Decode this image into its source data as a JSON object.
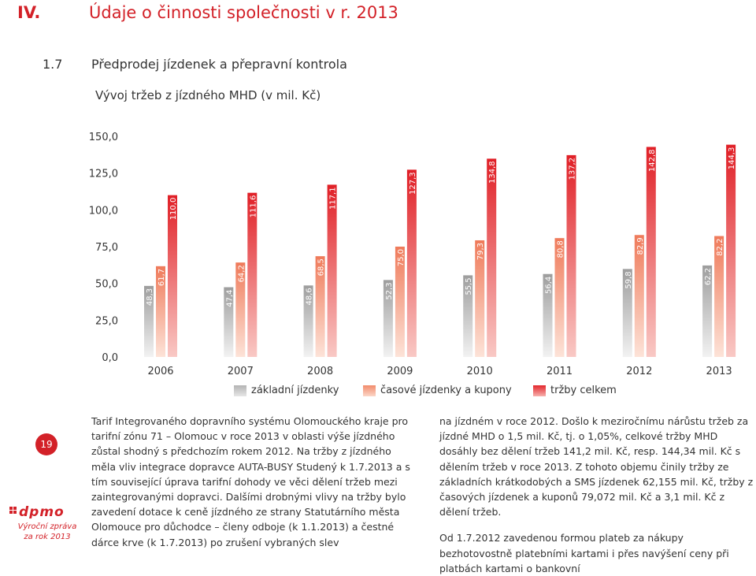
{
  "header": {
    "number": "IV.",
    "title": "Údaje o činnosti společnosti v r. 2013"
  },
  "section": {
    "number": "1.7",
    "title": "Předprodej jízdenek a přepravní kontrola"
  },
  "chart_data": {
    "type": "bar",
    "title": "Vývoj tržeb z jízdného MHD (v mil. Kč)",
    "categories": [
      "2006",
      "2007",
      "2008",
      "2009",
      "2010",
      "2011",
      "2012",
      "2013"
    ],
    "series": [
      {
        "name": "základní jízdenky",
        "values": [
          48.3,
          47.4,
          48.6,
          52.3,
          55.5,
          56.4,
          59.8,
          62.2
        ],
        "labels": [
          "48,3",
          "47,4",
          "48,6",
          "52,3",
          "55,5",
          "56,4",
          "59,8",
          "62,2"
        ]
      },
      {
        "name": "časové jízdenky a kupony",
        "values": [
          61.7,
          64.2,
          68.5,
          75.0,
          79.3,
          80.8,
          82.9,
          82.2
        ],
        "labels": [
          "61,7",
          "64,2",
          "68,5",
          "75,0",
          "79,3",
          "80,8",
          "82,9",
          "82,2"
        ]
      },
      {
        "name": "tržby celkem",
        "values": [
          110.0,
          111.6,
          117.1,
          127.3,
          134.8,
          137.2,
          142.8,
          144.3
        ],
        "labels": [
          "110,0",
          "111,6",
          "117,1",
          "127,3",
          "134,8",
          "137,2",
          "142,8",
          "144,3"
        ]
      }
    ],
    "yticks": [
      "0,0",
      "25,0",
      "50,0",
      "75,0",
      "100,0",
      "125,0",
      "150,0"
    ],
    "ylim": [
      0,
      150
    ],
    "legend_position": "bottom",
    "colors": [
      "#b4b4b4",
      "#f28b6b",
      "#e3262c"
    ]
  },
  "sidebar": {
    "page_number": "19",
    "logo": "dpmo",
    "annual_report": "Výroční zpráva za rok 2013"
  },
  "text": {
    "col1": "Tarif Integrovaného dopravního systému Olomouckého kraje pro tarifní zónu 71 – Olomouc v roce 2013 v oblasti výše jízdného zůstal shodný s předchozím rokem 2012. Na tržby z jízdného měla vliv integrace dopravce AUTA-BUSY Studený k 1.7.2013 a s tím související úprava tarifní dohody ve věci dělení tržeb mezi zaintegrovanými dopravci. Dalšími drobnými vlivy na tržby bylo zavedení dotace k ceně jízdného ze strany Statutárního města Olomouce pro důchodce – členy odboje (k 1.1.2013) a čestné dárce krve (k 1.7.2013) po zrušení vybraných slev",
    "col2_p1": "na jízdném v roce 2012. Došlo k meziročnímu nárůstu tržeb za jízdné MHD o 1,5 mil. Kč, tj. o 1,05%, celkové tržby MHD dosáhly bez dělení tržeb 141,2 mil. Kč, resp. 144,34 mil. Kč s dělením tržeb v roce 2013. Z tohoto objemu činily tržby ze základních krátkodobých a SMS jízdenek 62,155 mil. Kč, tržby z časových jízdenek a kuponů 79,072 mil. Kč a 3,1 mil. Kč z dělení tržeb.",
    "col2_p2": "Od 1.7.2012 zavedenou formou plateb za nákupy bezhotovostně platebními kartami i přes navýšení ceny při platbách kartami o bankovní"
  }
}
